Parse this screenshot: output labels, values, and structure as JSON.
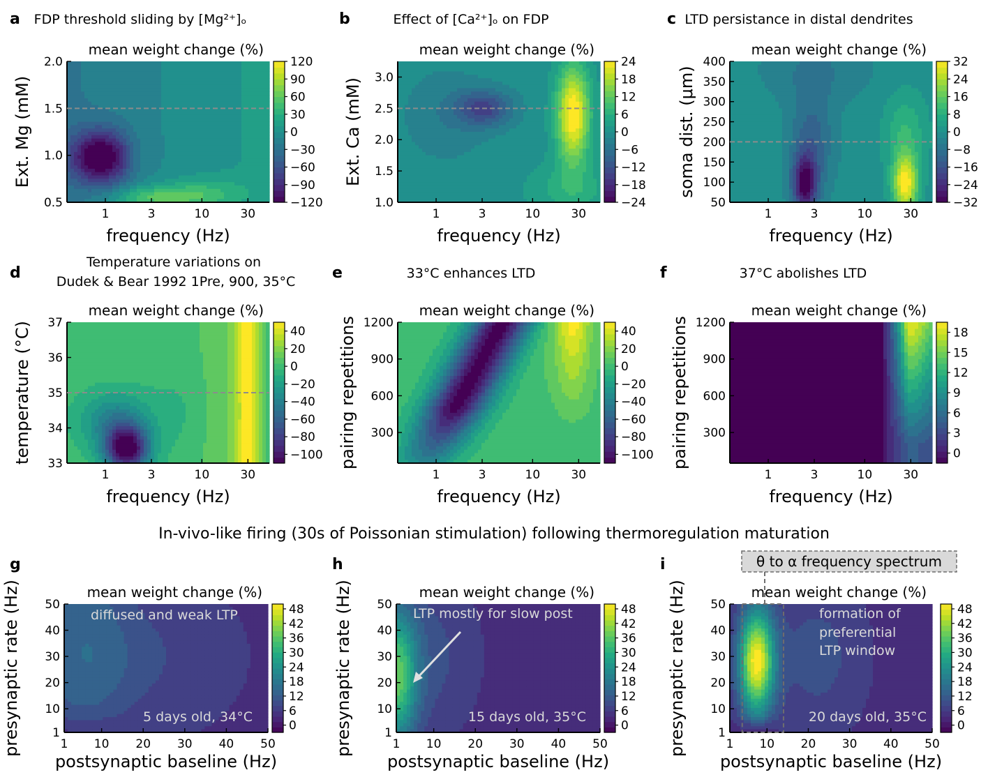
{
  "row3_title": "In-vivo-like firing (30s of Poissonian stimulation) following thermoregulation maturation",
  "colorbar_label": "mean weight change (%)",
  "annotation_box": "θ to α frequency spectrum",
  "chart_data": [
    {
      "id": "a",
      "type": "heatmap",
      "panel_letter": "a",
      "title": "FDP threshold sliding by [Mg²⁺]ₒ",
      "xlabel": "frequency (Hz)",
      "ylabel": "Ext. Mg (mM)",
      "xscale": "log",
      "xlim": [
        0.4,
        50
      ],
      "ylim": [
        0.5,
        2.0
      ],
      "xticks": [
        1,
        3,
        10,
        30
      ],
      "xticklabels": [
        "1",
        "3",
        "10",
        "30"
      ],
      "yticks": [
        0.5,
        1.0,
        1.5,
        2.0
      ],
      "yticklabels": [
        "0.5",
        "1.0",
        "1.5",
        "2.0"
      ],
      "vlim": [
        -120,
        120
      ],
      "cticks": [
        -120,
        -90,
        -60,
        -30,
        0,
        30,
        60,
        90,
        120
      ],
      "cticklabels": [
        "−120",
        "−90",
        "−60",
        "−30",
        "0",
        "30",
        "60",
        "90",
        "120"
      ],
      "hline": 1.5,
      "annotations": []
    },
    {
      "id": "b",
      "type": "heatmap",
      "panel_letter": "b",
      "title": "Effect of [Ca²⁺]ₒ on FDP",
      "xlabel": "frequency (Hz)",
      "ylabel": "Ext. Ca (mM)",
      "xscale": "log",
      "xlim": [
        0.4,
        50
      ],
      "ylim": [
        1.0,
        3.25
      ],
      "xticks": [
        1,
        3,
        10,
        30
      ],
      "xticklabels": [
        "1",
        "3",
        "10",
        "30"
      ],
      "yticks": [
        1.0,
        1.5,
        2.0,
        2.5,
        3.0
      ],
      "yticklabels": [
        "1.0",
        "1.5",
        "2.0",
        "2.5",
        "3.0"
      ],
      "vlim": [
        -24,
        24
      ],
      "cticks": [
        -24,
        -18,
        -12,
        -6,
        0,
        6,
        12,
        18,
        24
      ],
      "cticklabels": [
        "−24",
        "−18",
        "−12",
        "−6",
        "0",
        "6",
        "12",
        "18",
        "24"
      ],
      "hline": 2.5,
      "annotations": []
    },
    {
      "id": "c",
      "type": "heatmap",
      "panel_letter": "c",
      "title": "LTD persistance in distal dendrites",
      "xlabel": "frequency (Hz)",
      "ylabel": "soma dist. (μm)",
      "xscale": "log",
      "xlim": [
        0.4,
        50
      ],
      "ylim": [
        50,
        400
      ],
      "xticks": [
        1,
        3,
        10,
        30
      ],
      "xticklabels": [
        "1",
        "3",
        "10",
        "30"
      ],
      "yticks": [
        50,
        100,
        150,
        200,
        250,
        300,
        350,
        400
      ],
      "yticklabels": [
        "50",
        "100",
        "150",
        "200",
        "250",
        "300",
        "350",
        "400"
      ],
      "vlim": [
        -32,
        32
      ],
      "cticks": [
        -32,
        -24,
        -16,
        -8,
        0,
        8,
        16,
        24,
        32
      ],
      "cticklabels": [
        "−32",
        "−24",
        "−16",
        "−8",
        "0",
        "8",
        "16",
        "24",
        "32"
      ],
      "hline": 200,
      "annotations": []
    },
    {
      "id": "d",
      "type": "heatmap",
      "panel_letter": "d",
      "title": "Temperature variations on",
      "title2": "Dudek & Bear 1992 1Pre, 900, 35°C",
      "xlabel": "frequency (Hz)",
      "ylabel": "temperature (°C)",
      "xscale": "log",
      "xlim": [
        0.4,
        50
      ],
      "ylim": [
        33,
        37
      ],
      "xticks": [
        1,
        3,
        10,
        30
      ],
      "xticklabels": [
        "1",
        "3",
        "10",
        "30"
      ],
      "yticks": [
        33,
        34,
        35,
        36,
        37
      ],
      "yticklabels": [
        "33",
        "34",
        "35",
        "36",
        "37"
      ],
      "vlim": [
        -110,
        50
      ],
      "cticks": [
        -100,
        -80,
        -60,
        -40,
        -20,
        0,
        20,
        40
      ],
      "cticklabels": [
        "−100",
        "−80",
        "−60",
        "−40",
        "−20",
        "0",
        "20",
        "40"
      ],
      "hline": 35,
      "annotations": []
    },
    {
      "id": "e",
      "type": "heatmap",
      "panel_letter": "e",
      "title": "33°C enhances LTD",
      "xlabel": "frequency (Hz)",
      "ylabel": "pairing repetitions",
      "xscale": "log",
      "xlim": [
        0.4,
        50
      ],
      "ylim": [
        50,
        1200
      ],
      "xticks": [
        1,
        3,
        10,
        30
      ],
      "xticklabels": [
        "1",
        "3",
        "10",
        "30"
      ],
      "yticks": [
        300,
        600,
        900,
        1200
      ],
      "yticklabels": [
        "300",
        "600",
        "900",
        "1200"
      ],
      "vlim": [
        -110,
        50
      ],
      "cticks": [
        -100,
        -80,
        -60,
        -40,
        -20,
        0,
        20,
        40
      ],
      "cticklabels": [
        "−100",
        "−80",
        "−60",
        "−40",
        "−20",
        "0",
        "20",
        "40"
      ],
      "annotations": []
    },
    {
      "id": "f",
      "type": "heatmap",
      "panel_letter": "f",
      "title": "37°C abolishes LTD",
      "xlabel": "frequency (Hz)",
      "ylabel": "pairing repetitions",
      "xscale": "log",
      "xlim": [
        0.4,
        50
      ],
      "ylim": [
        50,
        1200
      ],
      "xticks": [
        1,
        3,
        10,
        30
      ],
      "xticklabels": [
        "1",
        "3",
        "10",
        "30"
      ],
      "yticks": [
        300,
        600,
        900,
        1200
      ],
      "yticklabels": [
        "300",
        "600",
        "900",
        "1200"
      ],
      "vlim": [
        -1.5,
        19.5
      ],
      "cticks": [
        0,
        3,
        6,
        9,
        12,
        15,
        18
      ],
      "cticklabels": [
        "0",
        "3",
        "6",
        "9",
        "12",
        "15",
        "18"
      ],
      "annotations": []
    },
    {
      "id": "g",
      "type": "heatmap",
      "panel_letter": "g",
      "title": "",
      "xlabel": "postsynaptic baseline (Hz)",
      "ylabel": "presynaptic rate (Hz)",
      "xscale": "linear",
      "xlim": [
        1,
        50
      ],
      "ylim": [
        1,
        50
      ],
      "xticks": [
        1,
        10,
        20,
        30,
        40,
        50
      ],
      "xticklabels": [
        "1",
        "10",
        "20",
        "30",
        "40",
        "50"
      ],
      "yticks": [
        1,
        10,
        20,
        30,
        40,
        50
      ],
      "yticklabels": [
        "1",
        "10",
        "20",
        "30",
        "40",
        "50"
      ],
      "vlim": [
        -3,
        50
      ],
      "cticks": [
        0,
        6,
        12,
        18,
        24,
        30,
        36,
        42,
        48
      ],
      "cticklabels": [
        "0",
        "6",
        "12",
        "18",
        "24",
        "30",
        "36",
        "42",
        "48"
      ],
      "annotations": [
        "diffused and weak LTP",
        "5 days old, 34°C"
      ]
    },
    {
      "id": "h",
      "type": "heatmap",
      "panel_letter": "h",
      "title": "",
      "xlabel": "postsynaptic baseline (Hz)",
      "ylabel": "presynaptic rate (Hz)",
      "xscale": "linear",
      "xlim": [
        1,
        50
      ],
      "ylim": [
        1,
        50
      ],
      "xticks": [
        1,
        10,
        20,
        30,
        40,
        50
      ],
      "xticklabels": [
        "1",
        "10",
        "20",
        "30",
        "40",
        "50"
      ],
      "yticks": [
        1,
        10,
        20,
        30,
        40,
        50
      ],
      "yticklabels": [
        "1",
        "10",
        "20",
        "30",
        "40",
        "50"
      ],
      "vlim": [
        -3,
        50
      ],
      "cticks": [
        0,
        6,
        12,
        18,
        24,
        30,
        36,
        42,
        48
      ],
      "cticklabels": [
        "0",
        "6",
        "12",
        "18",
        "24",
        "30",
        "36",
        "42",
        "48"
      ],
      "annotations": [
        "LTP mostly for slow post",
        "15 days old, 35°C"
      ]
    },
    {
      "id": "i",
      "type": "heatmap",
      "panel_letter": "i",
      "title": "",
      "xlabel": "postsynaptic baseline (Hz)",
      "ylabel": "presynaptic rate (Hz)",
      "xscale": "linear",
      "xlim": [
        1,
        50
      ],
      "ylim": [
        1,
        50
      ],
      "xticks": [
        1,
        10,
        20,
        30,
        40,
        50
      ],
      "xticklabels": [
        "1",
        "10",
        "20",
        "30",
        "40",
        "50"
      ],
      "yticks": [
        1,
        10,
        20,
        30,
        40,
        50
      ],
      "yticklabels": [
        "1",
        "10",
        "20",
        "30",
        "40",
        "50"
      ],
      "vlim": [
        -3,
        50
      ],
      "cticks": [
        0,
        6,
        12,
        18,
        24,
        30,
        36,
        42,
        48
      ],
      "cticklabels": [
        "0",
        "6",
        "12",
        "18",
        "24",
        "30",
        "36",
        "42",
        "48"
      ],
      "annotations": [
        "formation of",
        "preferential",
        "LTP window",
        "20 days old, 35°C"
      ],
      "window_x": [
        4,
        14
      ]
    }
  ]
}
